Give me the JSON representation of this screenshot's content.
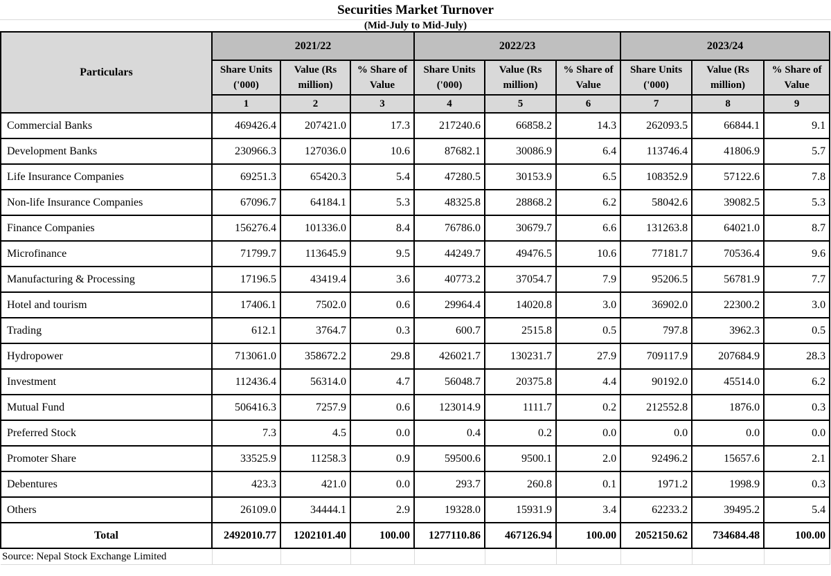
{
  "title": "Securities Market Turnover",
  "subtitle": "(Mid-July to Mid-July)",
  "source": "Source: Nepal Stock Exchange Limited",
  "colors": {
    "year_header_bg": "#bfbfbf",
    "subheader_bg": "#d9d9d9",
    "table_border": "#000000",
    "faint_gridline": "#d9d9d9"
  },
  "table": {
    "particulars_header": "Particulars",
    "year_groups": [
      "2021/22",
      "2022/23",
      "2023/24"
    ],
    "sub_headers": [
      "Share Units ('000)",
      "Value (Rs million)",
      "% Share of Value"
    ],
    "column_numbers": [
      "1",
      "2",
      "3",
      "4",
      "5",
      "6",
      "7",
      "8",
      "9"
    ],
    "rows": [
      {
        "label": "Commercial Banks",
        "values": [
          "469426.4",
          "207421.0",
          "17.3",
          "217240.6",
          "66858.2",
          "14.3",
          "262093.5",
          "66844.1",
          "9.1"
        ]
      },
      {
        "label": "Development Banks",
        "values": [
          "230966.3",
          "127036.0",
          "10.6",
          "87682.1",
          "30086.9",
          "6.4",
          "113746.4",
          "41806.9",
          "5.7"
        ]
      },
      {
        "label": "Life Insurance Companies",
        "values": [
          "69251.3",
          "65420.3",
          "5.4",
          "47280.5",
          "30153.9",
          "6.5",
          "108352.9",
          "57122.6",
          "7.8"
        ]
      },
      {
        "label": "Non-life Insurance Companies",
        "values": [
          "67096.7",
          "64184.1",
          "5.3",
          "48325.8",
          "28868.2",
          "6.2",
          "58042.6",
          "39082.5",
          "5.3"
        ]
      },
      {
        "label": "Finance Companies",
        "values": [
          "156276.4",
          "101336.0",
          "8.4",
          "76786.0",
          "30679.7",
          "6.6",
          "131263.8",
          "64021.0",
          "8.7"
        ]
      },
      {
        "label": "Microfinance",
        "values": [
          "71799.7",
          "113645.9",
          "9.5",
          "44249.7",
          "49476.5",
          "10.6",
          "77181.7",
          "70536.4",
          "9.6"
        ]
      },
      {
        "label": "Manufacturing & Processing",
        "values": [
          "17196.5",
          "43419.4",
          "3.6",
          "40773.2",
          "37054.7",
          "7.9",
          "95206.5",
          "56781.9",
          "7.7"
        ]
      },
      {
        "label": "Hotel and tourism",
        "values": [
          "17406.1",
          "7502.0",
          "0.6",
          "29964.4",
          "14020.8",
          "3.0",
          "36902.0",
          "22300.2",
          "3.0"
        ]
      },
      {
        "label": "Trading",
        "values": [
          "612.1",
          "3764.7",
          "0.3",
          "600.7",
          "2515.8",
          "0.5",
          "797.8",
          "3962.3",
          "0.5"
        ]
      },
      {
        "label": "Hydropower",
        "values": [
          "713061.0",
          "358672.2",
          "29.8",
          "426021.7",
          "130231.7",
          "27.9",
          "709117.9",
          "207684.9",
          "28.3"
        ]
      },
      {
        "label": "Investment",
        "values": [
          "112436.4",
          "56314.0",
          "4.7",
          "56048.7",
          "20375.8",
          "4.4",
          "90192.0",
          "45514.0",
          "6.2"
        ]
      },
      {
        "label": "Mutual Fund",
        "values": [
          "506416.3",
          "7257.9",
          "0.6",
          "123014.9",
          "1111.7",
          "0.2",
          "212552.8",
          "1876.0",
          "0.3"
        ]
      },
      {
        "label": "Preferred Stock",
        "values": [
          "7.3",
          "4.5",
          "0.0",
          "0.4",
          "0.2",
          "0.0",
          "0.0",
          "0.0",
          "0.0"
        ]
      },
      {
        "label": "Promoter Share",
        "values": [
          "33525.9",
          "11258.3",
          "0.9",
          "59500.6",
          "9500.1",
          "2.0",
          "92496.2",
          "15657.6",
          "2.1"
        ]
      },
      {
        "label": "Debentures",
        "values": [
          "423.3",
          "421.0",
          "0.0",
          "293.7",
          "260.8",
          "0.1",
          "1971.2",
          "1998.9",
          "0.3"
        ]
      },
      {
        "label": "Others",
        "values": [
          "26109.0",
          "34444.1",
          "2.9",
          "19328.0",
          "15931.9",
          "3.4",
          "62233.2",
          "39495.2",
          "5.4"
        ]
      }
    ],
    "total": {
      "label": "Total",
      "values": [
        "2492010.77",
        "1202101.40",
        "100.00",
        "1277110.86",
        "467126.94",
        "100.00",
        "2052150.62",
        "734684.48",
        "100.00"
      ]
    }
  }
}
